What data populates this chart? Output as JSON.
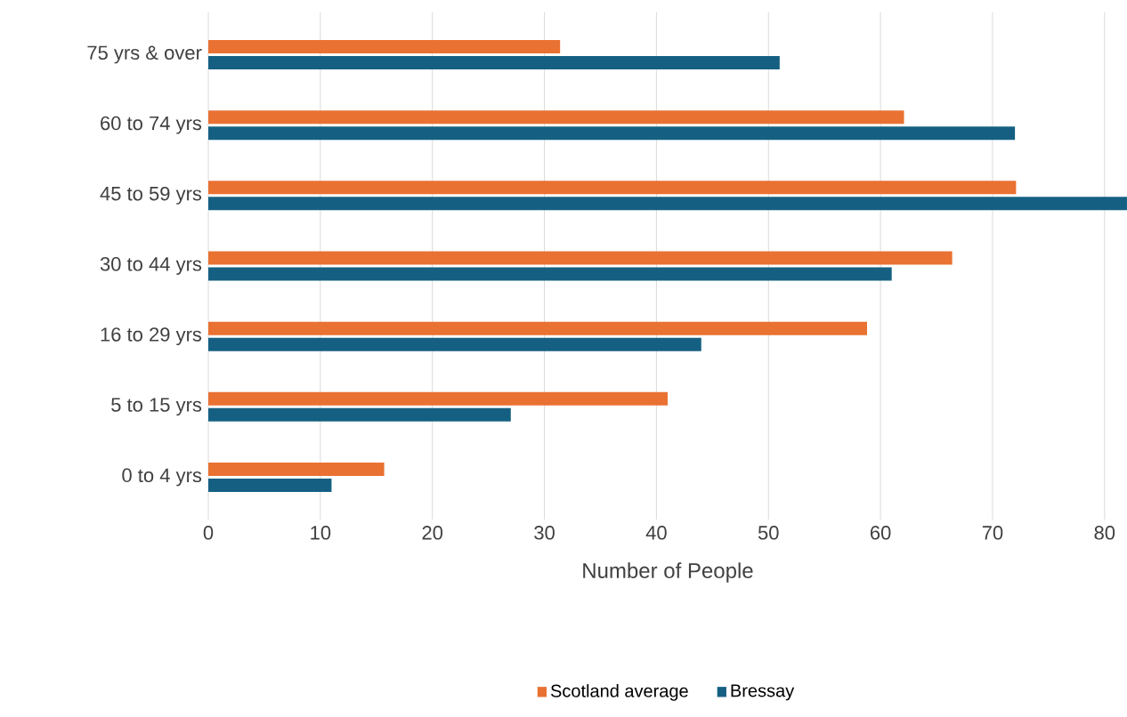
{
  "chart_data": {
    "type": "bar",
    "orientation": "horizontal",
    "categories": [
      "75 yrs & over",
      "60 to 74 yrs",
      "45 to 59 yrs",
      "30 to 44 yrs",
      "16 to 29 yrs",
      "5 to 15 yrs",
      "0 to 4 yrs"
    ],
    "series": [
      {
        "name": "Scotland average",
        "color": "#e97132",
        "values": [
          31.4,
          62.1,
          72.1,
          66.4,
          58.8,
          41.0,
          15.7
        ]
      },
      {
        "name": "Bressay",
        "color": "#156082",
        "values": [
          51,
          72,
          82,
          61,
          44,
          27,
          11
        ]
      }
    ],
    "xlabel": "Number of People",
    "xlim": [
      0,
      82
    ],
    "xticks": [
      0,
      10,
      20,
      30,
      40,
      50,
      60,
      70,
      80
    ],
    "grid": "x",
    "legend": "bottom"
  }
}
